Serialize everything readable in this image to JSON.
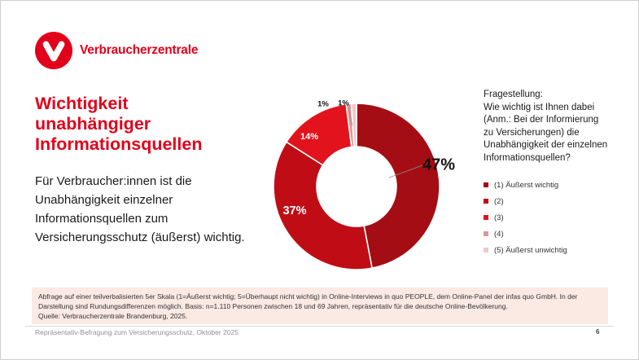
{
  "logo": {
    "text": "Verbraucherzentrale"
  },
  "title": "Wichtigkeit\nunabhängiger\nInformationsquellen",
  "intro": "Für Verbraucher:innen ist die Unabhängigkeit einzelner Informationsquellen zum Versicherungsschutz (äußerst) wichtig.",
  "question": {
    "heading": "Fragestellung:",
    "body": "Wie wichtig ist Ihnen dabei\n(Anm.: Bei der Informierung\nzu Versicherungen) die\nUnabhängigkeit der einzelnen\nInformationsquellen?"
  },
  "chart_data": {
    "type": "pie",
    "subtype": "donut",
    "title": "Wichtigkeit unabhängiger Informationsquellen",
    "categories": [
      "(1) Äußerst wichtig",
      "(2)",
      "(3)",
      "(4)",
      "(5) Äußerst unwichtig"
    ],
    "values": [
      47,
      37,
      14,
      1,
      1
    ],
    "unit": "%",
    "display_labels": [
      "47%",
      "37%",
      "14%",
      "1%",
      "1%"
    ],
    "colors": [
      "#a50d14",
      "#c00d15",
      "#e2131c",
      "#e0939a",
      "#f2c7c9"
    ],
    "start_angle_deg": 0,
    "direction": "clockwise",
    "legend_position": "right"
  },
  "note": {
    "text": "Abfrage auf einer teilverbalisierten 5er Skala (1=Äußerst wichtig; 5=Überhaupt nicht wichtig) in Online-Interviews in quo PEOPLE, dem Online-Panel der infas quo GmbH. In der Darstellung sind Rundungsdifferenzen möglich. Basis: n=1.110 Personen zwischen 18 und 69 Jahren, repräsentativ für die deutsche Online-Bevölkerung.",
    "source": "Quelle: Verbraucherzentrale Brandenburg, 2025."
  },
  "footer": {
    "text": "Repräsentativ-Befragung zum Versicherungsschutz, Oktober 2025",
    "page": "6"
  },
  "colors": {
    "brand_red": "#e2001a",
    "note_background": "#fbe9e3",
    "footer_gray": "#8f8f8f",
    "leader_line_gray": "#8c8c8c"
  }
}
